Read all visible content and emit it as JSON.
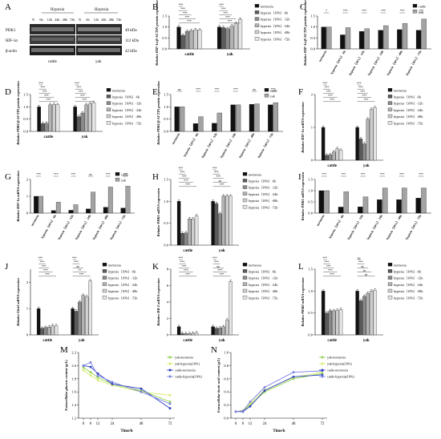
{
  "panel_letters": [
    "A",
    "B",
    "C",
    "D",
    "E",
    "F",
    "G",
    "H",
    "I",
    "J",
    "K",
    "L",
    "M",
    "N"
  ],
  "western_blot": {
    "group_labels": [
      "Hypoxia",
      "Hypoxia"
    ],
    "lane_labels": [
      "N",
      "6h",
      "12h",
      "24h",
      "48h",
      "72h"
    ],
    "proteins": [
      "PDK1",
      "HIF-1α",
      "β-actin"
    ],
    "sizes": [
      "49 kDa",
      "112 kDa",
      "42 kDa"
    ],
    "species": [
      "cattle",
      "yak"
    ]
  },
  "legends": {
    "six_group": [
      "normoxia",
      "hypoxia（10%）-6h",
      "hypoxia（10%）-12h",
      "hypoxia（10%）-24h",
      "hypoxia（10%）-48h",
      "hypoxia（10%）-72h"
    ],
    "two_species": [
      "cattle",
      "yak"
    ],
    "time_course": [
      "yak-normoxia",
      "yak-hypoxia(10%)",
      "cattle-normoxia",
      "cattle-hypoxia(10%)"
    ]
  },
  "condition_ticks": [
    "normoxia",
    "hypoxia（10%）-6h",
    "hypoxia（10%）-12h",
    "hypoxia（10%）-24h",
    "hypoxia（10%）-48h",
    "hypoxia（10%）-72h"
  ],
  "species_ticks": [
    "cattle",
    "yak"
  ],
  "chart_data": [
    {
      "id": "B",
      "type": "bar",
      "layout": "grouped",
      "categories": [
        "cattle",
        "yak"
      ],
      "ylabel": "Relative HIF-1α/β-ACTIN protein expression",
      "ylim": [
        0,
        1.5
      ],
      "yticks": [
        "0.0",
        "0.5",
        "1.0",
        "1.5"
      ],
      "series": [
        {
          "name": "normoxia",
          "values": [
            1.0,
            1.0
          ]
        },
        {
          "name": "hypoxia（10%）-6h",
          "values": [
            0.62,
            0.97
          ]
        },
        {
          "name": "hypoxia（10%）-12h",
          "values": [
            0.8,
            0.92
          ]
        },
        {
          "name": "hypoxia（10%）-24h",
          "values": [
            0.83,
            1.04
          ]
        },
        {
          "name": "hypoxia（10%）-48h",
          "values": [
            0.87,
            1.15
          ]
        },
        {
          "name": "hypoxia（10%）-72h",
          "values": [
            0.85,
            1.35
          ]
        }
      ],
      "annotations": [
        [
          "***",
          "***",
          "***",
          "***",
          "***"
        ],
        [
          "***",
          "***",
          "***",
          "***",
          "***"
        ]
      ]
    },
    {
      "id": "C",
      "type": "bar",
      "layout": "paired",
      "categories": [
        "normoxia",
        "hypoxia（10%）-6h",
        "hypoxia（10%）-12h",
        "hypoxia（10%）-24h",
        "hypoxia（10%）-48h",
        "hypoxia（10%）-72h"
      ],
      "ylabel": "Relative HIF-1α/β-ACTIN protein expression",
      "ylim": [
        0,
        1.5
      ],
      "yticks": [
        "0.0",
        "0.5",
        "1.0",
        "1.5"
      ],
      "series": [
        {
          "name": "cattle",
          "values": [
            1.0,
            0.64,
            0.8,
            0.85,
            0.88,
            0.85
          ]
        },
        {
          "name": "yak",
          "values": [
            1.0,
            0.97,
            0.92,
            1.06,
            1.16,
            1.36
          ]
        }
      ],
      "annotations": [
        "*",
        "***",
        "***",
        "***",
        "***",
        "***"
      ]
    },
    {
      "id": "D",
      "type": "bar",
      "layout": "grouped",
      "categories": [
        "cattle",
        "yak"
      ],
      "ylabel": "Relative PDK1/β-ACTIN protein expression",
      "ylim": [
        0,
        1.5
      ],
      "yticks": [
        "0.0",
        "0.5",
        "1.0",
        "1.5"
      ],
      "series": [
        {
          "name": "normoxia",
          "values": [
            1.0,
            1.0
          ]
        },
        {
          "name": "hypoxia（10%）-6h",
          "values": [
            0.32,
            0.6
          ]
        },
        {
          "name": "hypoxia（10%）-12h",
          "values": [
            0.33,
            0.75
          ]
        },
        {
          "name": "hypoxia（10%）-24h",
          "values": [
            1.08,
            1.08
          ]
        },
        {
          "name": "hypoxia（10%）-48h",
          "values": [
            1.1,
            1.12
          ]
        },
        {
          "name": "hypoxia（10%）-72h",
          "values": [
            1.08,
            1.17
          ]
        }
      ],
      "annotations": [
        [
          "***",
          "***",
          "***",
          "***",
          "***"
        ],
        [
          "***",
          "***",
          "***",
          "***",
          "***"
        ]
      ]
    },
    {
      "id": "E",
      "type": "bar",
      "layout": "paired",
      "categories": [
        "normoxia",
        "hypoxia（10%）-6h",
        "hypoxia（10%）-12h",
        "hypoxia（10%）-24h",
        "hypoxia（10%）-48h",
        "hypoxia（10%）-72h"
      ],
      "ylabel": "Relative PDK1/β-ACTIN protein expression",
      "ylim": [
        0,
        1.5
      ],
      "yticks": [
        "0.0",
        "0.5",
        "1.0",
        "1.5"
      ],
      "series": [
        {
          "name": "cattle",
          "values": [
            1.0,
            0.32,
            0.33,
            1.08,
            1.1,
            1.08
          ]
        },
        {
          "name": "yak",
          "values": [
            1.0,
            0.6,
            0.75,
            1.08,
            1.12,
            1.17
          ]
        }
      ],
      "annotations": [
        "ns",
        "***",
        "***",
        "***",
        "ns",
        "***"
      ]
    },
    {
      "id": "F",
      "type": "bar",
      "layout": "grouped",
      "categories": [
        "cattle",
        "yak"
      ],
      "ylabel": "Relative HIF-1α mRNA expression",
      "ylim": [
        0,
        2
      ],
      "yticks": [
        "0",
        "1",
        "2"
      ],
      "series": [
        {
          "name": "normoxia",
          "values": [
            1.0,
            1.0
          ]
        },
        {
          "name": "hypoxia（10%）-6h",
          "values": [
            0.15,
            0.65
          ]
        },
        {
          "name": "hypoxia（10%）-12h",
          "values": [
            0.17,
            0.5
          ]
        },
        {
          "name": "hypoxia（10%）-24h",
          "values": [
            0.25,
            1.25
          ]
        },
        {
          "name": "hypoxia（10%）-48h",
          "values": [
            0.35,
            1.55
          ]
        },
        {
          "name": "hypoxia（10%）-72h",
          "values": [
            0.3,
            1.6
          ]
        }
      ],
      "annotations": [
        [
          "***",
          "***",
          "***",
          "***",
          "***"
        ],
        [
          "***",
          "***",
          "***",
          "***",
          "***"
        ]
      ]
    },
    {
      "id": "G",
      "type": "bar",
      "layout": "paired",
      "categories": [
        "normoxia",
        "hypoxia（10%）-6h",
        "hypoxia（10%）-12h",
        "hypoxia（10%）-24h",
        "hypoxia（10%）-48h",
        "hypoxia（10%）-72h"
      ],
      "ylabel": "Relative HIF-1α mRNA expression",
      "ylim": [
        0,
        2
      ],
      "yticks": [
        "0",
        "1",
        "2"
      ],
      "series": [
        {
          "name": "cattle",
          "values": [
            1.0,
            0.15,
            0.17,
            0.25,
            0.35,
            0.3
          ]
        },
        {
          "name": "yak",
          "values": [
            1.0,
            0.65,
            0.5,
            1.25,
            1.55,
            1.6
          ]
        }
      ],
      "annotations": [
        "***",
        "***",
        "***",
        "ns",
        "***",
        "***"
      ]
    },
    {
      "id": "H",
      "type": "bar",
      "layout": "grouped",
      "categories": [
        "cattle",
        "yak"
      ],
      "ylabel": "Relative PDK1 mRNA expression",
      "ylim": [
        0,
        1.5
      ],
      "yticks": [
        "0.0",
        "0.5",
        "1.0",
        "1.5"
      ],
      "series": [
        {
          "name": "normoxia",
          "values": [
            1.0,
            1.0
          ]
        },
        {
          "name": "hypoxia（10%）-6h",
          "values": [
            0.27,
            0.95
          ]
        },
        {
          "name": "hypoxia（10%）-12h",
          "values": [
            0.28,
            0.72
          ]
        },
        {
          "name": "hypoxia（10%）-24h",
          "values": [
            0.6,
            1.12
          ]
        },
        {
          "name": "hypoxia（10%）-48h",
          "values": [
            0.6,
            1.12
          ]
        },
        {
          "name": "hypoxia（10%）-72h",
          "values": [
            0.67,
            1.12
          ]
        }
      ],
      "annotations": [
        [
          "***",
          "***",
          "***",
          "***",
          "***"
        ],
        [
          "***",
          "***",
          "***",
          "ns",
          "***"
        ]
      ]
    },
    {
      "id": "I",
      "type": "bar",
      "layout": "paired",
      "categories": [
        "normoxia",
        "hypoxia（10%）-6h",
        "hypoxia（10%）-12h",
        "hypoxia（10%）-24h",
        "hypoxia（10%）-48h",
        "hypoxia（10%）-72h"
      ],
      "ylabel": "Relative PDK1 mRNA expression",
      "ylim": [
        0,
        1.5
      ],
      "yticks": [
        "0.0",
        "0.5",
        "1.0",
        "1.5"
      ],
      "series": [
        {
          "name": "cattle",
          "values": [
            1.0,
            0.27,
            0.28,
            0.6,
            0.6,
            0.67
          ]
        },
        {
          "name": "yak",
          "values": [
            1.0,
            0.95,
            0.72,
            1.12,
            1.12,
            1.12
          ]
        }
      ],
      "annotations": [
        "***",
        "***",
        "***",
        "***",
        "***",
        "***"
      ]
    },
    {
      "id": "J",
      "type": "bar",
      "layout": "grouped",
      "categories": [
        "cattle",
        "yak"
      ],
      "ylabel": "Relative Glut1 mRNA expression",
      "ylim": [
        0,
        2.5
      ],
      "yticks": [
        "0",
        "1",
        "2"
      ],
      "series": [
        {
          "name": "normoxia",
          "values": [
            1.0,
            1.0
          ]
        },
        {
          "name": "hypoxia（10%）-6h",
          "values": [
            0.25,
            0.9
          ]
        },
        {
          "name": "hypoxia（10%）-12h",
          "values": [
            0.28,
            1.25
          ]
        },
        {
          "name": "hypoxia（10%）-24h",
          "values": [
            0.3,
            1.5
          ]
        },
        {
          "name": "hypoxia（10%）-48h",
          "values": [
            0.35,
            1.45
          ]
        },
        {
          "name": "hypoxia（10%）-72h",
          "values": [
            0.35,
            2.05
          ]
        }
      ],
      "annotations": [
        [
          "***",
          "***",
          "***",
          "***",
          "***"
        ],
        [
          "***",
          "***",
          "ns",
          "**",
          "***"
        ]
      ]
    },
    {
      "id": "K",
      "type": "bar",
      "layout": "grouped",
      "categories": [
        "cattle",
        "yak"
      ],
      "ylabel": "Relative HK-2 mRNA expression",
      "ylim": [
        0,
        8
      ],
      "yticks": [
        "0",
        "2",
        "4",
        "6",
        "8"
      ],
      "series": [
        {
          "name": "normoxia",
          "values": [
            1.0,
            1.0
          ]
        },
        {
          "name": "hypoxia（10%）-6h",
          "values": [
            0.15,
            0.8
          ]
        },
        {
          "name": "hypoxia（10%）-12h",
          "values": [
            0.15,
            0.85
          ]
        },
        {
          "name": "hypoxia（10%）-24h",
          "values": [
            0.15,
            1.0
          ]
        },
        {
          "name": "hypoxia（10%）-48h",
          "values": [
            0.2,
            1.8
          ]
        },
        {
          "name": "hypoxia（10%）-72h",
          "values": [
            0.25,
            6.5
          ]
        }
      ],
      "annotations": [
        [
          "***",
          "***",
          "***",
          "***",
          "***"
        ],
        [
          "***",
          "***",
          "ns",
          "***",
          "***"
        ]
      ]
    },
    {
      "id": "L",
      "type": "bar",
      "layout": "grouped",
      "categories": [
        "cattle",
        "yak"
      ],
      "ylabel": "Relative PKM2 mRNA expression",
      "ylim": [
        0,
        1.5
      ],
      "yticks": [
        "0.0",
        "0.5",
        "1.0",
        "1.5"
      ],
      "series": [
        {
          "name": "normoxia",
          "values": [
            1.0,
            1.0
          ]
        },
        {
          "name": "hypoxia（10%）-6h",
          "values": [
            0.5,
            0.78
          ]
        },
        {
          "name": "hypoxia（10%）-12h",
          "values": [
            0.55,
            0.88
          ]
        },
        {
          "name": "hypoxia（10%）-24h",
          "values": [
            0.55,
            0.95
          ]
        },
        {
          "name": "hypoxia（10%）-48h",
          "values": [
            0.56,
            1.0
          ]
        },
        {
          "name": "hypoxia（10%）-72h",
          "values": [
            0.58,
            1.02
          ]
        }
      ],
      "annotations": [
        [
          "***",
          "***",
          "***",
          "***",
          "***"
        ],
        [
          "ns",
          "***",
          "ns",
          "ns",
          "ns"
        ]
      ]
    },
    {
      "id": "M",
      "type": "line",
      "x": [
        0,
        6,
        12,
        24,
        48,
        72
      ],
      "xlabel": "Time/h",
      "ylabel": "Extracellular glucose content (g/L)",
      "ylim": [
        1.2,
        2.2
      ],
      "yticks": [
        "1.2",
        "1.4",
        "1.6",
        "1.8",
        "2.0",
        "2.2"
      ],
      "series": [
        {
          "name": "yak-normoxia",
          "values": [
            1.97,
            1.9,
            1.82,
            1.72,
            1.62,
            1.45
          ]
        },
        {
          "name": "yak-hypoxia(10%)",
          "values": [
            1.93,
            1.85,
            1.78,
            1.7,
            1.6,
            1.55
          ]
        },
        {
          "name": "cattle-normoxia",
          "values": [
            2.0,
            1.98,
            1.88,
            1.72,
            1.65,
            1.35
          ]
        },
        {
          "name": "cattle-hypoxia(10%)",
          "values": [
            2.0,
            2.05,
            1.85,
            1.75,
            1.6,
            1.42
          ]
        }
      ]
    },
    {
      "id": "N",
      "type": "line",
      "x": [
        0,
        6,
        12,
        24,
        48,
        72
      ],
      "xlabel": "Time/h",
      "ylabel": "Extracellular lactic acid content (g/L)",
      "ylim": [
        0,
        1.0
      ],
      "yticks": [
        "0.0",
        "0.2",
        "0.4",
        "0.6",
        "0.8",
        "1.0"
      ],
      "series": [
        {
          "name": "yak-normoxia",
          "values": [
            0.1,
            0.11,
            0.2,
            0.4,
            0.6,
            0.68
          ]
        },
        {
          "name": "yak-hypoxia(10%)",
          "values": [
            0.1,
            0.12,
            0.22,
            0.43,
            0.62,
            0.7
          ]
        },
        {
          "name": "cattle-normoxia",
          "values": [
            0.1,
            0.1,
            0.18,
            0.42,
            0.63,
            0.66
          ]
        },
        {
          "name": "cattle-hypoxia(10%)",
          "values": [
            0.1,
            0.11,
            0.25,
            0.47,
            0.7,
            0.72
          ]
        }
      ]
    }
  ],
  "colors": {
    "six_group": [
      "#111111",
      "#5c5c5c",
      "#8a8a8a",
      "#b3b3b3",
      "#cfcfcf",
      "#e4e4e4"
    ],
    "two_species": [
      "#111111",
      "#a3a3a3"
    ],
    "time_course": [
      "#8fd14f",
      "#d4ec6a",
      "#2b3ec6",
      "#7a7fe0"
    ]
  }
}
